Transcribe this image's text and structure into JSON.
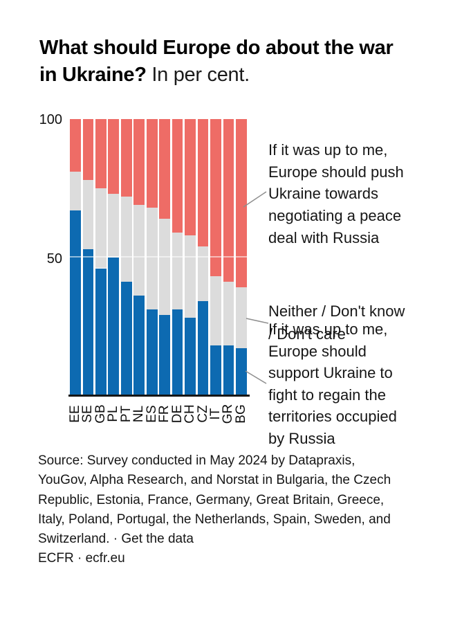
{
  "title": {
    "question": "What should Europe do about the war\nin Ukraine? ",
    "suffix": "In per cent."
  },
  "y_axis": {
    "ticks": [
      "100",
      "50"
    ]
  },
  "annotations": {
    "negotiate": "If it was up to me,\nEurope should push\nUkraine towards\nnegotiating a peace\ndeal with Russia",
    "neither": "Neither / Don't know\n/ Don't care",
    "fight": "If it was up to me,\nEurope should\nsupport Ukraine to\nfight to regain the\nterritories occupied\nby Russia"
  },
  "source": {
    "lines": "Source: Survey conducted in May 2024 by Datapraxis,\nYouGov, Alpha Research, and Norstat in Bulgaria, the Czech\nRepublic, Estonia, France, Germany, Great Britain, Greece,\nItaly, Poland, Portugal, the Netherlands, Spain, Sweden, and",
    "last_line_prefix": "Switzerland. · ",
    "link": "Get the data",
    "footer": "ECFR · ecfr.eu"
  },
  "chart_data": {
    "type": "bar",
    "subtype": "stacked-vertical",
    "unit": "per cent",
    "ylim": [
      0,
      100
    ],
    "yticks": [
      50,
      100
    ],
    "grid": "single faint line at 50",
    "legend_position": "right-side text annotations with connector lines",
    "categories": [
      "EE",
      "SE",
      "GB",
      "PL",
      "PT",
      "NL",
      "ES",
      "FR",
      "DE",
      "CH",
      "CZ",
      "IT",
      "GR",
      "BG"
    ],
    "series": [
      {
        "key": "fight",
        "name": "If it was up to me, Europe should support Ukraine to fight to regain the territories occupied by Russia",
        "color": "#0d6ab1",
        "values": [
          67,
          53,
          46,
          50,
          41,
          36,
          31,
          29,
          31,
          28,
          34,
          18,
          18,
          17
        ]
      },
      {
        "key": "neither",
        "name": "Neither / Don't know / Don't care",
        "color": "#dcdcdc",
        "values": [
          14,
          25,
          29,
          23,
          31,
          33,
          37,
          35,
          28,
          30,
          20,
          25,
          23,
          22
        ]
      },
      {
        "key": "negotiate",
        "name": "If it was up to me, Europe should push Ukraine towards negotiating a peace deal with Russia",
        "color": "#ee6c66",
        "values": [
          19,
          22,
          25,
          27,
          28,
          31,
          32,
          36,
          41,
          42,
          46,
          57,
          59,
          61
        ]
      }
    ],
    "title": "What should Europe do about the war in Ukraine? In per cent."
  },
  "colors": {
    "fight_blue": "#0d6ab1",
    "neither_grey": "#dcdcdc",
    "negotiate_red": "#ee6c66",
    "connector_grey": "#8e8e8e",
    "text_black": "#161616"
  }
}
